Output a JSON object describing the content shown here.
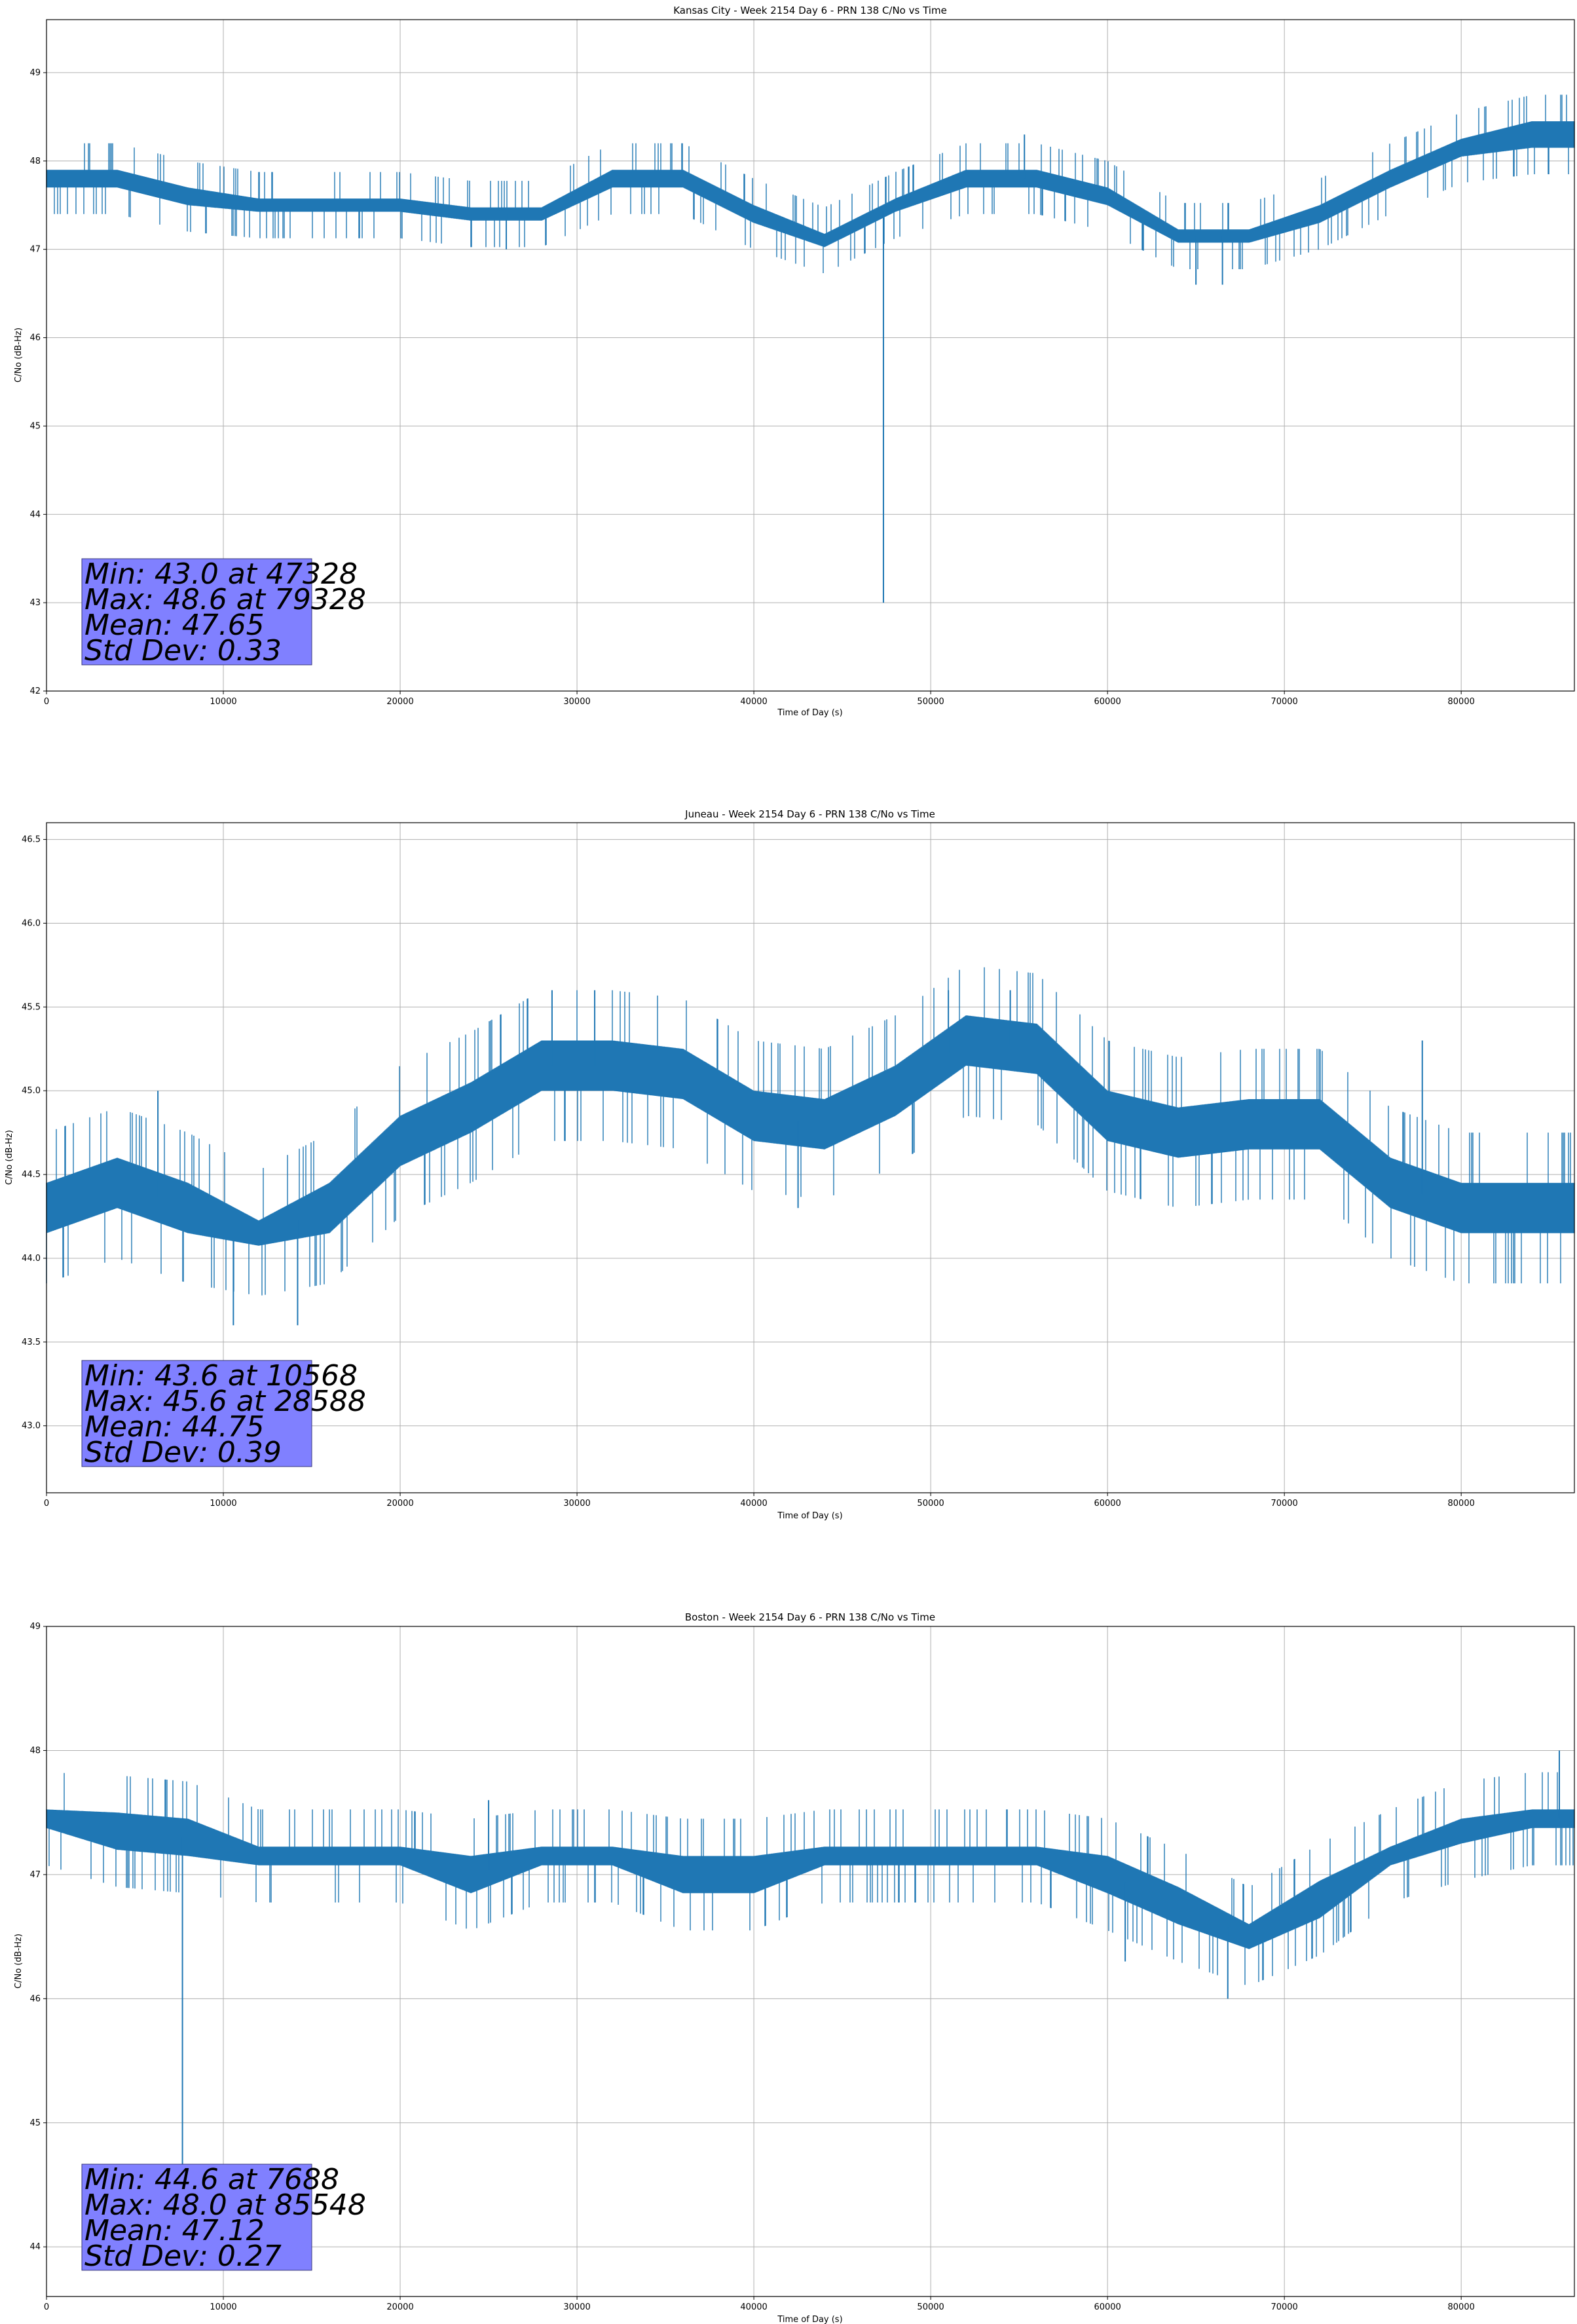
{
  "figure": {
    "background": "#ffffff",
    "line_color": "#1f77b4",
    "grid_color": "#b0b0b0",
    "stats_box_color": "#8080ff"
  },
  "chart_data": [
    {
      "type": "line",
      "title": "Kansas City - Week 2154 Day 6 - PRN 138 C/No vs Time",
      "xlabel": "Time of Day (s)",
      "ylabel": "C/No (dB-Hz)",
      "xlim": [
        0,
        86400
      ],
      "ylim": [
        42,
        49.6
      ],
      "xticks": [
        0,
        10000,
        20000,
        30000,
        40000,
        50000,
        60000,
        70000,
        80000
      ],
      "yticks": [
        42,
        43,
        44,
        45,
        46,
        47,
        48,
        49
      ],
      "ytick_decimals": 0,
      "grid": true,
      "series": [
        {
          "levels": [
            47.6,
            48.0,
            47.3,
            47.6,
            47.3,
            47.6,
            47.0,
            47.3,
            47.6,
            47.3,
            47.6,
            47.3,
            47.0,
            47.3,
            47.6,
            48.0,
            47.6,
            48.0,
            48.3,
            48.0,
            48.3
          ],
          "x": [
            0,
            4000,
            8000,
            12000,
            16000,
            20000,
            24000,
            28000,
            32000,
            36000,
            40000,
            44000,
            48000,
            52000,
            56000,
            60000,
            64000,
            68000,
            72000,
            76000,
            80000,
            84000,
            86400
          ],
          "y": [
            47.8,
            47.8,
            47.6,
            47.5,
            47.5,
            47.5,
            47.4,
            47.4,
            47.8,
            47.8,
            47.4,
            47.1,
            47.5,
            47.8,
            47.8,
            47.6,
            47.15,
            47.15,
            47.4,
            47.8,
            48.15,
            48.3,
            48.3
          ],
          "band": [
            0.2,
            0.2,
            0.2,
            0.15,
            0.15,
            0.15,
            0.15,
            0.15,
            0.2,
            0.2,
            0.2,
            0.15,
            0.15,
            0.2,
            0.2,
            0.2,
            0.15,
            0.15,
            0.2,
            0.2,
            0.2,
            0.3,
            0.3
          ]
        }
      ],
      "spikes": [
        {
          "x": 47328,
          "y": 43.0
        },
        {
          "x": 26000,
          "y": 47.0
        },
        {
          "x": 65000,
          "y": 46.6
        },
        {
          "x": 66500,
          "y": 46.6
        },
        {
          "x": 55300,
          "y": 48.3
        }
      ],
      "stats": [
        "Min: 43.0 at 47328",
        "Max: 48.6 at 79328",
        "Mean: 47.65",
        "Std Dev: 0.33"
      ]
    },
    {
      "type": "line",
      "title": "Juneau - Week 2154 Day 6 - PRN 138 C/No vs Time",
      "xlabel": "Time of Day (s)",
      "ylabel": "C/No (dB-Hz)",
      "xlim": [
        0,
        86400
      ],
      "ylim": [
        42.6,
        46.6
      ],
      "xticks": [
        0,
        10000,
        20000,
        30000,
        40000,
        50000,
        60000,
        70000,
        80000
      ],
      "yticks": [
        43.0,
        43.5,
        44.0,
        44.5,
        45.0,
        45.5,
        46.0,
        46.5
      ],
      "ytick_decimals": 1,
      "grid": true,
      "series": [
        {
          "x": [
            0,
            4000,
            8000,
            12000,
            16000,
            20000,
            24000,
            28000,
            32000,
            36000,
            40000,
            44000,
            48000,
            52000,
            56000,
            60000,
            64000,
            68000,
            72000,
            76000,
            80000,
            84000,
            86400
          ],
          "y": [
            44.3,
            44.45,
            44.3,
            44.15,
            44.3,
            44.7,
            44.9,
            45.15,
            45.15,
            45.1,
            44.85,
            44.8,
            45.0,
            45.3,
            45.25,
            44.85,
            44.75,
            44.8,
            44.8,
            44.45,
            44.3,
            44.3,
            44.3
          ],
          "band": [
            0.3,
            0.3,
            0.3,
            0.15,
            0.3,
            0.3,
            0.3,
            0.3,
            0.3,
            0.3,
            0.3,
            0.3,
            0.3,
            0.3,
            0.3,
            0.3,
            0.3,
            0.3,
            0.3,
            0.3,
            0.3,
            0.3,
            0.3
          ]
        }
      ],
      "spikes": [
        {
          "x": 10568,
          "y": 43.6
        },
        {
          "x": 14200,
          "y": 43.6
        },
        {
          "x": 28588,
          "y": 45.6
        },
        {
          "x": 31000,
          "y": 45.6
        },
        {
          "x": 51000,
          "y": 45.6
        },
        {
          "x": 54500,
          "y": 45.6
        },
        {
          "x": 42500,
          "y": 44.3
        },
        {
          "x": 6300,
          "y": 45.0
        },
        {
          "x": 77800,
          "y": 45.3
        }
      ],
      "stats": [
        "Min: 43.6 at 10568",
        "Max: 45.6 at 28588",
        "Mean: 44.75",
        "Std Dev: 0.39"
      ]
    },
    {
      "type": "line",
      "title": "Boston - Week 2154 Day 6 - PRN 138 C/No vs Time",
      "xlabel": "Time of Day (s)",
      "ylabel": "C/No (dB-Hz)",
      "xlim": [
        0,
        86400
      ],
      "ylim": [
        43.6,
        49
      ],
      "xticks": [
        0,
        10000,
        20000,
        30000,
        40000,
        50000,
        60000,
        70000,
        80000
      ],
      "yticks": [
        44,
        45,
        46,
        47,
        48,
        49
      ],
      "ytick_decimals": 0,
      "grid": true,
      "series": [
        {
          "x": [
            0,
            4000,
            8000,
            12000,
            16000,
            20000,
            24000,
            28000,
            32000,
            36000,
            40000,
            44000,
            48000,
            52000,
            56000,
            60000,
            64000,
            68000,
            72000,
            76000,
            80000,
            84000,
            86400
          ],
          "y": [
            47.45,
            47.35,
            47.3,
            47.15,
            47.15,
            47.15,
            47.0,
            47.15,
            47.15,
            47.0,
            47.0,
            47.15,
            47.15,
            47.15,
            47.15,
            47.0,
            46.75,
            46.5,
            46.8,
            47.15,
            47.35,
            47.45,
            47.45
          ],
          "band": [
            0.15,
            0.3,
            0.3,
            0.15,
            0.15,
            0.15,
            0.3,
            0.15,
            0.15,
            0.3,
            0.3,
            0.15,
            0.15,
            0.15,
            0.15,
            0.3,
            0.3,
            0.2,
            0.3,
            0.15,
            0.2,
            0.15,
            0.15
          ]
        }
      ],
      "spikes": [
        {
          "x": 7688,
          "y": 44.6
        },
        {
          "x": 85548,
          "y": 48.0
        },
        {
          "x": 66800,
          "y": 46.0
        },
        {
          "x": 61000,
          "y": 46.3
        },
        {
          "x": 25000,
          "y": 47.6
        }
      ],
      "stats": [
        "Min: 44.6 at 7688",
        "Max: 48.0 at 85548",
        "Mean: 47.12",
        "Std Dev: 0.27"
      ]
    }
  ]
}
